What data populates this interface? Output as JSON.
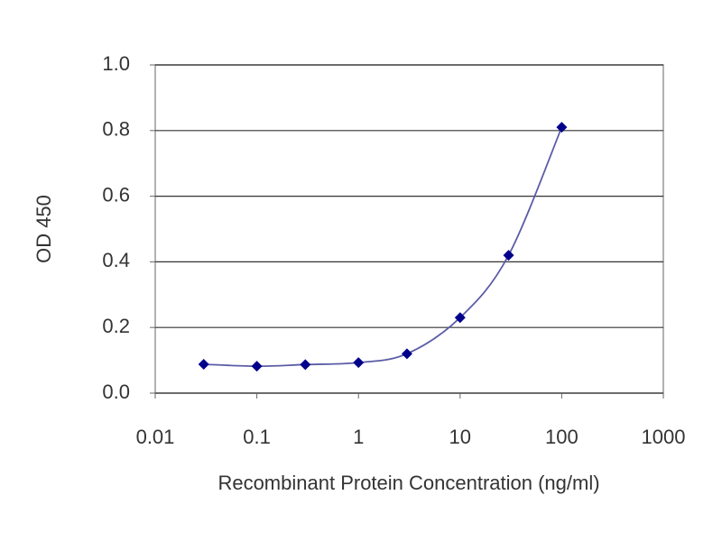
{
  "chart_data": {
    "type": "line",
    "x_label": "Recombinant Protein Concentration (ng/ml)",
    "y_label": "OD 450",
    "x": [
      0.03,
      0.1,
      0.3,
      1,
      3,
      10,
      30,
      100
    ],
    "series": [
      {
        "color": "#00008b",
        "line_color": "#5c5ca8",
        "values": [
          0.088,
          0.082,
          0.087,
          0.093,
          0.12,
          0.23,
          0.42,
          0.81
        ]
      }
    ],
    "xscale": "log",
    "xlim": [
      0.01,
      1000
    ],
    "xticks": [
      0.01,
      0.1,
      1,
      10,
      100,
      1000
    ],
    "ylim": [
      0,
      1
    ],
    "yticks": [
      {
        "value": 0,
        "label": "0.0"
      },
      0.2,
      0.4,
      0.6,
      0.8,
      {
        "value": 1,
        "label": "1.0"
      }
    ],
    "grid": true
  }
}
